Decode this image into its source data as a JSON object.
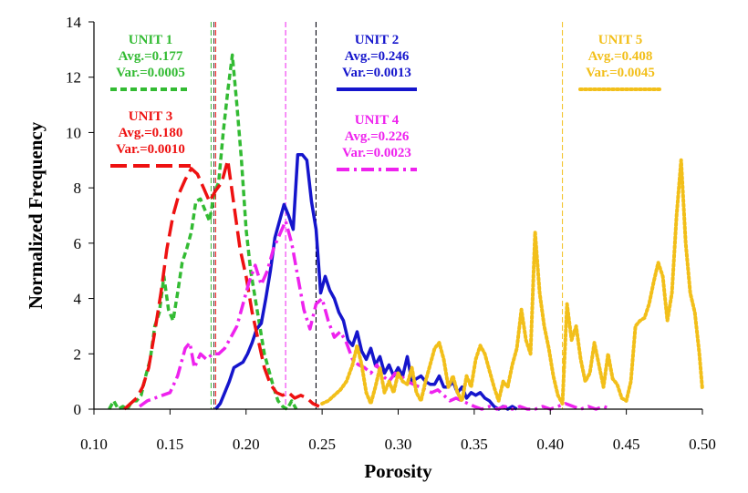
{
  "chart_data": {
    "type": "line",
    "xlabel": "Porosity",
    "ylabel": "Normalized Frequency",
    "xlim": [
      0.1,
      0.5
    ],
    "ylim": [
      0,
      14
    ],
    "x_ticks": [
      "0.10",
      "0.15",
      "0.20",
      "0.25",
      "0.30",
      "0.35",
      "0.40",
      "0.45",
      "0.50"
    ],
    "y_ticks": [
      "0",
      "2",
      "4",
      "6",
      "8",
      "10",
      "12",
      "14"
    ],
    "grid": false,
    "series": [
      {
        "name": "UNIT 1",
        "avg_label": "Avg.=0.177",
        "var_label": "Var.=0.0005",
        "mean": 0.177,
        "color": "#33bb33",
        "style": "dashed",
        "points": [
          [
            0.11,
            0.0
          ],
          [
            0.113,
            0.3
          ],
          [
            0.116,
            0.0
          ],
          [
            0.119,
            0.1
          ],
          [
            0.122,
            0.0
          ],
          [
            0.125,
            0.3
          ],
          [
            0.128,
            0.3
          ],
          [
            0.131,
            0.5
          ],
          [
            0.134,
            1.2
          ],
          [
            0.137,
            1.8
          ],
          [
            0.14,
            3.0
          ],
          [
            0.143,
            3.5
          ],
          [
            0.146,
            4.8
          ],
          [
            0.149,
            3.6
          ],
          [
            0.152,
            3.2
          ],
          [
            0.155,
            4.2
          ],
          [
            0.158,
            5.3
          ],
          [
            0.161,
            5.8
          ],
          [
            0.164,
            6.4
          ],
          [
            0.167,
            7.5
          ],
          [
            0.17,
            7.6
          ],
          [
            0.173,
            7.2
          ],
          [
            0.176,
            6.8
          ],
          [
            0.179,
            7.8
          ],
          [
            0.182,
            8.2
          ],
          [
            0.185,
            10.0
          ],
          [
            0.188,
            11.5
          ],
          [
            0.191,
            12.8
          ],
          [
            0.194,
            11.0
          ],
          [
            0.197,
            9.0
          ],
          [
            0.2,
            6.5
          ],
          [
            0.203,
            5.0
          ],
          [
            0.206,
            4.0
          ],
          [
            0.209,
            3.0
          ],
          [
            0.212,
            2.0
          ],
          [
            0.215,
            1.4
          ],
          [
            0.218,
            0.8
          ],
          [
            0.221,
            0.3
          ],
          [
            0.224,
            0.1
          ],
          [
            0.227,
            0.0
          ],
          [
            0.23,
            0.3
          ],
          [
            0.233,
            0.0
          ]
        ]
      },
      {
        "name": "UNIT 2",
        "avg_label": "Avg.=0.246",
        "var_label": "Var.=0.0013",
        "mean": 0.246,
        "color": "#1515cc",
        "style": "solid",
        "points": [
          [
            0.18,
            0.0
          ],
          [
            0.183,
            0.2
          ],
          [
            0.186,
            0.6
          ],
          [
            0.189,
            1.0
          ],
          [
            0.192,
            1.5
          ],
          [
            0.195,
            1.6
          ],
          [
            0.198,
            1.7
          ],
          [
            0.201,
            2.0
          ],
          [
            0.204,
            2.4
          ],
          [
            0.207,
            2.9
          ],
          [
            0.21,
            3.1
          ],
          [
            0.213,
            4.0
          ],
          [
            0.216,
            5.0
          ],
          [
            0.219,
            6.2
          ],
          [
            0.222,
            6.8
          ],
          [
            0.225,
            7.4
          ],
          [
            0.228,
            7.0
          ],
          [
            0.231,
            6.5
          ],
          [
            0.234,
            9.2
          ],
          [
            0.237,
            9.2
          ],
          [
            0.24,
            9.0
          ],
          [
            0.243,
            7.5
          ],
          [
            0.246,
            6.5
          ],
          [
            0.249,
            4.2
          ],
          [
            0.252,
            4.8
          ],
          [
            0.255,
            4.3
          ],
          [
            0.258,
            4.0
          ],
          [
            0.261,
            3.5
          ],
          [
            0.264,
            3.2
          ],
          [
            0.267,
            2.5
          ],
          [
            0.27,
            2.3
          ],
          [
            0.273,
            2.8
          ],
          [
            0.276,
            2.1
          ],
          [
            0.279,
            1.8
          ],
          [
            0.282,
            2.2
          ],
          [
            0.285,
            1.6
          ],
          [
            0.288,
            1.9
          ],
          [
            0.291,
            1.3
          ],
          [
            0.294,
            1.6
          ],
          [
            0.297,
            1.2
          ],
          [
            0.3,
            1.5
          ],
          [
            0.303,
            1.2
          ],
          [
            0.306,
            1.9
          ],
          [
            0.309,
            1.0
          ],
          [
            0.312,
            1.1
          ],
          [
            0.315,
            1.2
          ],
          [
            0.318,
            1.0
          ],
          [
            0.321,
            0.9
          ],
          [
            0.324,
            0.9
          ],
          [
            0.327,
            1.2
          ],
          [
            0.33,
            0.8
          ],
          [
            0.333,
            0.8
          ],
          [
            0.336,
            1.0
          ],
          [
            0.339,
            0.6
          ],
          [
            0.342,
            0.8
          ],
          [
            0.345,
            0.4
          ],
          [
            0.348,
            0.6
          ],
          [
            0.351,
            0.5
          ],
          [
            0.354,
            0.6
          ],
          [
            0.357,
            0.4
          ],
          [
            0.36,
            0.3
          ],
          [
            0.363,
            0.1
          ],
          [
            0.366,
            0.0
          ],
          [
            0.369,
            0.1
          ],
          [
            0.372,
            0.0
          ],
          [
            0.375,
            0.1
          ],
          [
            0.378,
            0.0
          ]
        ]
      },
      {
        "name": "UNIT 3",
        "avg_label": "Avg.=0.180",
        "var_label": "Var.=0.0010",
        "mean": 0.18,
        "color": "#ee1111",
        "style": "long-dash",
        "points": [
          [
            0.12,
            0.0
          ],
          [
            0.124,
            0.2
          ],
          [
            0.128,
            0.4
          ],
          [
            0.132,
            0.8
          ],
          [
            0.136,
            1.5
          ],
          [
            0.14,
            2.8
          ],
          [
            0.144,
            4.2
          ],
          [
            0.148,
            5.8
          ],
          [
            0.152,
            7.0
          ],
          [
            0.156,
            7.8
          ],
          [
            0.16,
            8.3
          ],
          [
            0.164,
            8.7
          ],
          [
            0.168,
            8.5
          ],
          [
            0.172,
            8.0
          ],
          [
            0.176,
            7.5
          ],
          [
            0.18,
            7.9
          ],
          [
            0.184,
            8.2
          ],
          [
            0.188,
            9.0
          ],
          [
            0.192,
            7.4
          ],
          [
            0.196,
            5.8
          ],
          [
            0.2,
            4.8
          ],
          [
            0.204,
            3.5
          ],
          [
            0.208,
            2.5
          ],
          [
            0.212,
            1.5
          ],
          [
            0.216,
            0.9
          ],
          [
            0.22,
            0.6
          ],
          [
            0.224,
            0.5
          ],
          [
            0.228,
            0.6
          ],
          [
            0.232,
            0.4
          ],
          [
            0.236,
            0.5
          ],
          [
            0.24,
            0.4
          ],
          [
            0.244,
            0.2
          ],
          [
            0.248,
            0.1
          ]
        ]
      },
      {
        "name": "UNIT 4",
        "avg_label": "Avg.=0.226",
        "var_label": "Var.=0.0023",
        "mean": 0.226,
        "color": "#ee22ee",
        "style": "dash-dot",
        "points": [
          [
            0.13,
            0.1
          ],
          [
            0.135,
            0.3
          ],
          [
            0.14,
            0.4
          ],
          [
            0.145,
            0.5
          ],
          [
            0.15,
            0.6
          ],
          [
            0.155,
            1.2
          ],
          [
            0.16,
            2.2
          ],
          [
            0.163,
            2.4
          ],
          [
            0.166,
            1.5
          ],
          [
            0.17,
            2.0
          ],
          [
            0.174,
            1.8
          ],
          [
            0.178,
            2.0
          ],
          [
            0.182,
            2.0
          ],
          [
            0.186,
            2.2
          ],
          [
            0.19,
            2.6
          ],
          [
            0.194,
            3.0
          ],
          [
            0.198,
            3.8
          ],
          [
            0.202,
            4.6
          ],
          [
            0.206,
            5.2
          ],
          [
            0.21,
            4.5
          ],
          [
            0.214,
            5.0
          ],
          [
            0.218,
            5.8
          ],
          [
            0.222,
            6.3
          ],
          [
            0.226,
            6.8
          ],
          [
            0.23,
            6.0
          ],
          [
            0.234,
            4.8
          ],
          [
            0.238,
            3.6
          ],
          [
            0.242,
            2.9
          ],
          [
            0.246,
            3.8
          ],
          [
            0.25,
            4.0
          ],
          [
            0.254,
            3.2
          ],
          [
            0.258,
            2.6
          ],
          [
            0.262,
            2.8
          ],
          [
            0.266,
            2.4
          ],
          [
            0.27,
            1.8
          ],
          [
            0.274,
            1.6
          ],
          [
            0.278,
            1.5
          ],
          [
            0.282,
            1.3
          ],
          [
            0.286,
            1.6
          ],
          [
            0.29,
            1.2
          ],
          [
            0.294,
            1.0
          ],
          [
            0.298,
            1.3
          ],
          [
            0.302,
            1.2
          ],
          [
            0.306,
            1.0
          ],
          [
            0.31,
            0.9
          ],
          [
            0.314,
            0.8
          ],
          [
            0.318,
            0.7
          ],
          [
            0.322,
            0.6
          ],
          [
            0.326,
            0.7
          ],
          [
            0.33,
            0.5
          ],
          [
            0.334,
            0.3
          ],
          [
            0.338,
            0.4
          ],
          [
            0.342,
            0.3
          ],
          [
            0.346,
            0.2
          ],
          [
            0.35,
            0.1
          ],
          [
            0.355,
            0.0
          ],
          [
            0.36,
            0.1
          ],
          [
            0.365,
            0.0
          ],
          [
            0.37,
            0.1
          ],
          [
            0.375,
            0.0
          ],
          [
            0.38,
            0.1
          ],
          [
            0.385,
            0.0
          ],
          [
            0.39,
            0.0
          ],
          [
            0.395,
            0.1
          ],
          [
            0.4,
            0.0
          ],
          [
            0.405,
            0.1
          ],
          [
            0.41,
            0.2
          ],
          [
            0.415,
            0.1
          ],
          [
            0.42,
            0.0
          ],
          [
            0.425,
            0.1
          ],
          [
            0.43,
            0.0
          ],
          [
            0.435,
            0.1
          ],
          [
            0.44,
            0.0
          ]
        ]
      },
      {
        "name": "UNIT 5",
        "avg_label": "Avg.=0.408",
        "var_label": "Var.=0.0045",
        "mean": 0.408,
        "color": "#f2bf1a",
        "style": "dotted",
        "points": [
          [
            0.25,
            0.2
          ],
          [
            0.254,
            0.3
          ],
          [
            0.258,
            0.5
          ],
          [
            0.262,
            0.7
          ],
          [
            0.266,
            1.0
          ],
          [
            0.27,
            1.6
          ],
          [
            0.273,
            2.3
          ],
          [
            0.276,
            1.6
          ],
          [
            0.279,
            0.6
          ],
          [
            0.282,
            0.2
          ],
          [
            0.285,
            0.8
          ],
          [
            0.288,
            1.5
          ],
          [
            0.291,
            0.6
          ],
          [
            0.294,
            1.0
          ],
          [
            0.297,
            0.6
          ],
          [
            0.3,
            1.3
          ],
          [
            0.303,
            1.0
          ],
          [
            0.306,
            0.9
          ],
          [
            0.309,
            1.5
          ],
          [
            0.312,
            0.6
          ],
          [
            0.315,
            0.3
          ],
          [
            0.318,
            1.0
          ],
          [
            0.321,
            1.6
          ],
          [
            0.324,
            2.2
          ],
          [
            0.327,
            2.4
          ],
          [
            0.33,
            1.8
          ],
          [
            0.333,
            0.8
          ],
          [
            0.336,
            1.2
          ],
          [
            0.339,
            0.6
          ],
          [
            0.342,
            0.3
          ],
          [
            0.345,
            1.2
          ],
          [
            0.348,
            0.8
          ],
          [
            0.351,
            1.8
          ],
          [
            0.354,
            2.3
          ],
          [
            0.357,
            2.0
          ],
          [
            0.36,
            1.4
          ],
          [
            0.363,
            0.8
          ],
          [
            0.366,
            0.3
          ],
          [
            0.369,
            1.0
          ],
          [
            0.372,
            0.8
          ],
          [
            0.375,
            1.6
          ],
          [
            0.378,
            2.2
          ],
          [
            0.381,
            3.6
          ],
          [
            0.384,
            2.5
          ],
          [
            0.387,
            2.0
          ],
          [
            0.39,
            6.4
          ],
          [
            0.393,
            4.2
          ],
          [
            0.396,
            3.0
          ],
          [
            0.399,
            2.2
          ],
          [
            0.402,
            1.2
          ],
          [
            0.405,
            0.5
          ],
          [
            0.408,
            0.2
          ],
          [
            0.411,
            3.8
          ],
          [
            0.414,
            2.5
          ],
          [
            0.417,
            3.0
          ],
          [
            0.42,
            1.8
          ],
          [
            0.423,
            1.0
          ],
          [
            0.426,
            1.3
          ],
          [
            0.429,
            2.4
          ],
          [
            0.432,
            1.6
          ],
          [
            0.435,
            0.8
          ],
          [
            0.438,
            2.0
          ],
          [
            0.441,
            1.1
          ],
          [
            0.444,
            0.9
          ],
          [
            0.447,
            0.4
          ],
          [
            0.45,
            0.3
          ],
          [
            0.453,
            1.0
          ],
          [
            0.456,
            3.0
          ],
          [
            0.459,
            3.2
          ],
          [
            0.462,
            3.3
          ],
          [
            0.465,
            3.8
          ],
          [
            0.468,
            4.6
          ],
          [
            0.471,
            5.3
          ],
          [
            0.474,
            4.8
          ],
          [
            0.477,
            3.2
          ],
          [
            0.48,
            4.2
          ],
          [
            0.483,
            7.0
          ],
          [
            0.486,
            9.0
          ],
          [
            0.489,
            6.0
          ],
          [
            0.492,
            4.2
          ],
          [
            0.495,
            3.5
          ],
          [
            0.498,
            2.0
          ],
          [
            0.5,
            0.7
          ]
        ]
      }
    ]
  }
}
